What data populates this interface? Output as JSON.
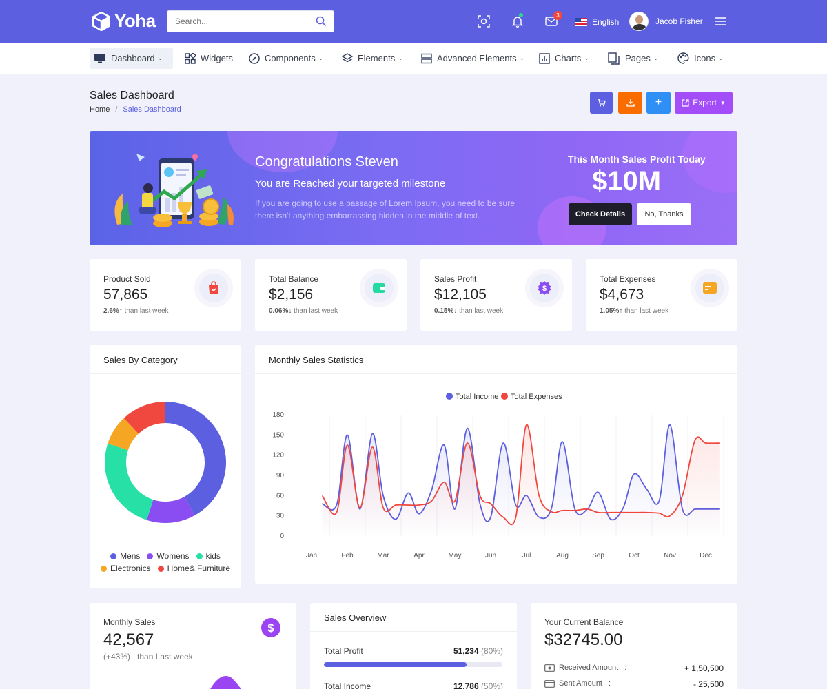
{
  "app": {
    "name": "Yoha",
    "search_placeholder": "Search...",
    "notifications_count": "3",
    "language": "English",
    "user_name": "Jacob Fisher"
  },
  "nav": {
    "items": [
      {
        "label": "Dashboard",
        "icon": "monitor-icon"
      },
      {
        "label": "Widgets",
        "icon": "grid-icon"
      },
      {
        "label": "Components",
        "icon": "compass-icon"
      },
      {
        "label": "Elements",
        "icon": "layers-icon"
      },
      {
        "label": "Advanced Elements",
        "icon": "server-icon"
      },
      {
        "label": "Charts",
        "icon": "bar-chart-icon"
      },
      {
        "label": "Pages",
        "icon": "pages-icon"
      },
      {
        "label": "Icons",
        "icon": "palette-icon"
      }
    ]
  },
  "page": {
    "title": "Sales Dashboard",
    "breadcrumb": [
      "Home",
      "Sales Dashboard"
    ],
    "export_label": "Export"
  },
  "banner": {
    "title": "Congratulations Steven",
    "subtitle": "You are Reached your targeted milestone",
    "description": "If you are going to use a passage of Lorem Ipsum, you need to be sure there isn't anything embarrassing hidden in the middle of text.",
    "profit_label": "This Month Sales Profit Today",
    "profit_value": "$10M",
    "primary_button": "Check Details",
    "secondary_button": "No, Thanks"
  },
  "stats": [
    {
      "label": "Product Sold",
      "value": "57,865",
      "change": "2.6%",
      "arrow": "↑",
      "suffix": " than last week",
      "icon": "shopping-bag-icon",
      "color": "#f0483e"
    },
    {
      "label": "Total Balance",
      "value": "$2,156",
      "change": "0.06%",
      "arrow": "↓",
      "suffix": " than last week",
      "icon": "wallet-icon",
      "color": "#26d9a2"
    },
    {
      "label": "Sales Profit",
      "value": "$12,105",
      "change": "0.15%",
      "arrow": "↓",
      "suffix": " than last week",
      "icon": "dollar-badge-icon",
      "color": "#8a4df2"
    },
    {
      "label": "Total Expenses",
      "value": "$4,673",
      "change": "1.05%",
      "arrow": "↑",
      "suffix": " than last week",
      "icon": "credit-card-icon",
      "color": "#f5a623"
    }
  ],
  "category": {
    "title": "Sales By Category",
    "legend": [
      {
        "label": "Mens",
        "color": "#5b5fe0"
      },
      {
        "label": "Womens",
        "color": "#8a4df2"
      },
      {
        "label": "kids",
        "color": "#26e0a6"
      },
      {
        "label": "Electronics",
        "color": "#f5a623"
      },
      {
        "label": "Home& Furniture",
        "color": "#f0483e"
      }
    ]
  },
  "monthly_stats": {
    "title": "Monthly Sales Statistics"
  },
  "chart_data": [
    {
      "type": "pie",
      "title": "Sales By Category",
      "categories": [
        "Mens",
        "Womens",
        "kids",
        "Electronics",
        "Home& Furniture"
      ],
      "values": [
        42,
        13,
        25,
        8,
        12
      ],
      "colors": [
        "#5b5fe0",
        "#8a4df2",
        "#26e0a6",
        "#f5a623",
        "#f0483e"
      ],
      "donut": true,
      "legend": "bottom"
    },
    {
      "type": "line",
      "title": "Monthly Sales Statistics",
      "categories": [
        "Jan",
        "Feb",
        "Mar",
        "Apr",
        "May",
        "Jun",
        "Jul",
        "Aug",
        "Sep",
        "Oct",
        "Nov",
        "Dec"
      ],
      "x": [
        0.3,
        0.7,
        1.0,
        1.35,
        1.7,
        2.0,
        2.35,
        2.7,
        3.0,
        3.35,
        3.7,
        4.0,
        4.35,
        4.7,
        5.0,
        5.35,
        5.7,
        6.0,
        6.35,
        6.7,
        7.0,
        7.35,
        7.7,
        8.0,
        8.35,
        8.7,
        9.0,
        9.35,
        9.7,
        10.0,
        10.35,
        10.7,
        11.0,
        11.4
      ],
      "series": [
        {
          "name": "Total Income",
          "color": "#5b5fe0",
          "values": [
            48,
            46,
            150,
            40,
            152,
            60,
            25,
            64,
            33,
            68,
            135,
            40,
            160,
            48,
            28,
            138,
            46,
            60,
            28,
            42,
            140,
            40,
            40,
            65,
            25,
            42,
            92,
            70,
            52,
            165,
            40,
            40,
            40,
            40
          ]
        },
        {
          "name": "Total Expenses",
          "color": "#f0483e",
          "values": [
            60,
            35,
            135,
            42,
            132,
            42,
            46,
            46,
            46,
            52,
            80,
            52,
            138,
            60,
            48,
            28,
            28,
            165,
            60,
            36,
            38,
            38,
            40,
            35,
            35,
            35,
            35,
            35,
            34,
            30,
            60,
            142,
            138,
            138
          ]
        }
      ],
      "xlabel": "",
      "ylabel": "",
      "ylim": [
        0,
        180
      ],
      "yticks": [
        0,
        30,
        60,
        90,
        120,
        150,
        180
      ],
      "grid": "vertical",
      "legend": "top-center"
    }
  ],
  "monthly_sales": {
    "label": "Monthly Sales",
    "value": "42,567",
    "change": "(+43%)",
    "suffix": "than Last week"
  },
  "sales_overview": {
    "title": "Sales Overview",
    "rows": [
      {
        "label": "Total Profit",
        "value": "51,234",
        "percent": "(80%)",
        "fill": 0.8
      },
      {
        "label": "Total Income",
        "value": "12,786",
        "percent": "(50%)",
        "fill": 0.5
      }
    ]
  },
  "balance": {
    "label": "Your Current Balance",
    "value": "$32745.00",
    "rows": [
      {
        "label": "Received Amount",
        "value": "+ 1,50,500",
        "icon": "cash-icon"
      },
      {
        "label": "Sent Amount",
        "value": "- 25,500",
        "icon": "card-icon"
      }
    ]
  }
}
